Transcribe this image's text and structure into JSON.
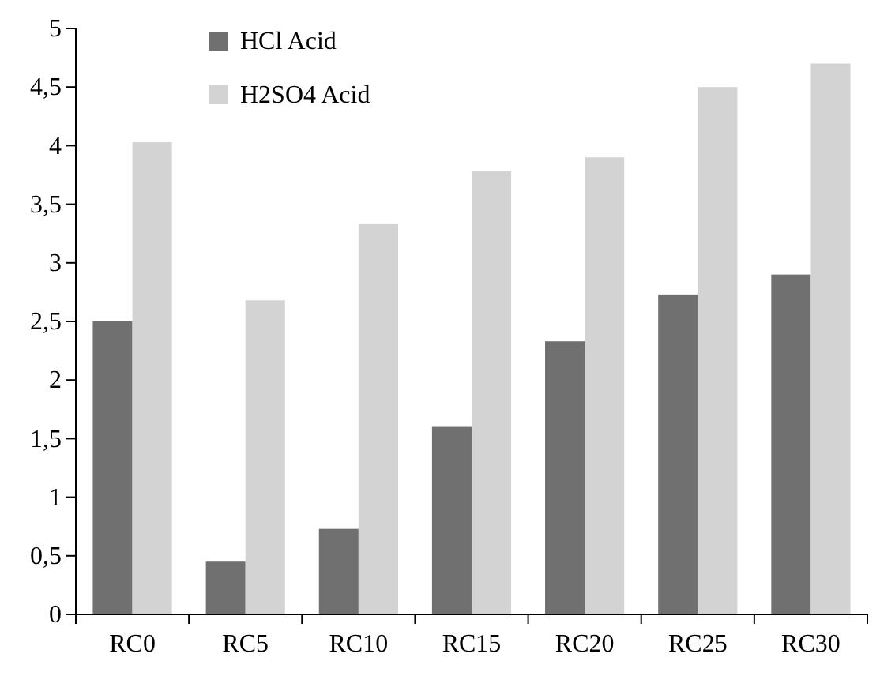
{
  "chart_data": {
    "type": "bar",
    "categories": [
      "RC0",
      "RC5",
      "RC10",
      "RC15",
      "RC20",
      "RC25",
      "RC30"
    ],
    "series": [
      {
        "name": "HCl Acid",
        "color": "#707070",
        "values": [
          2.5,
          0.45,
          0.73,
          1.6,
          2.33,
          2.73,
          2.9
        ]
      },
      {
        "name": "H2SO4 Acid",
        "color": "#d3d3d3",
        "values": [
          4.03,
          2.68,
          3.33,
          3.78,
          3.9,
          4.5,
          4.7
        ]
      }
    ],
    "ylim": [
      0,
      5
    ],
    "yticks": [
      0,
      {
        "value": 0.5,
        "label": "0,5"
      },
      1,
      {
        "value": 1.5,
        "label": "1,5"
      },
      2,
      {
        "value": 2.5,
        "label": "2,5"
      },
      3,
      {
        "value": 3.5,
        "label": "3,5"
      },
      4,
      {
        "value": 4.5,
        "label": "4,5"
      },
      5
    ],
    "grid": false,
    "legend": "top left"
  }
}
